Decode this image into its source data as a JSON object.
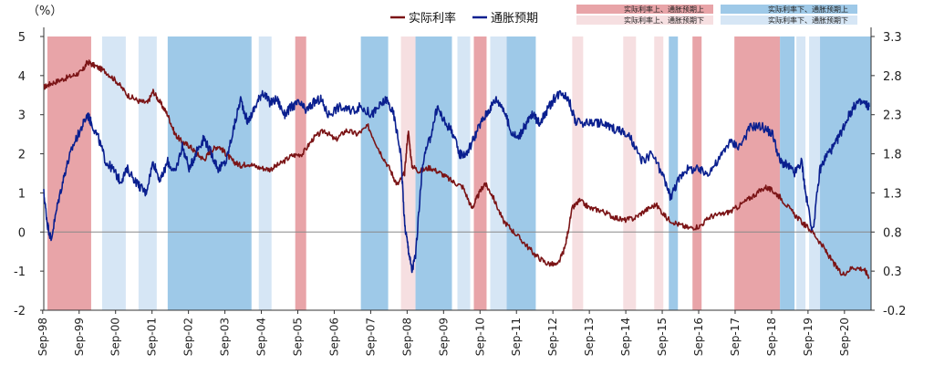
{
  "chart_data": {
    "type": "line",
    "unit_label": "（%）",
    "left_axis": {
      "ylim": [
        -2,
        5
      ],
      "ticks": [
        "5",
        "4",
        "3",
        "2",
        "1",
        "0",
        "-1",
        "-2"
      ]
    },
    "right_axis": {
      "ylim": [
        -0.2,
        3.3
      ],
      "ticks": [
        "3.3",
        "2.8",
        "2.3",
        "1.8",
        "1.3",
        "0.8",
        "0.3",
        "-0.2"
      ]
    },
    "x_ticks": [
      "Sep-98",
      "Sep-99",
      "Sep-00",
      "Sep-01",
      "Sep-02",
      "Sep-03",
      "Sep-04",
      "Sep-05",
      "Sep-06",
      "Sep-07",
      "Sep-08",
      "Sep-09",
      "Sep-10",
      "Sep-11",
      "Sep-12",
      "Sep-13",
      "Sep-14",
      "Sep-15",
      "Sep-16",
      "Sep-17",
      "Sep-18",
      "Sep-19",
      "Sep-20"
    ],
    "x_range": [
      1998.7,
      2021.4
    ],
    "series": [
      {
        "name": "实际利率",
        "axis": "left",
        "color": "#7b1416",
        "x": [
          1998.7,
          1998.9,
          1999.2,
          1999.5,
          1999.75,
          1999.9,
          2000.1,
          2000.4,
          2000.7,
          2001.0,
          2001.3,
          2001.55,
          2001.7,
          2001.9,
          2002.1,
          2002.3,
          2002.5,
          2002.7,
          2002.9,
          2003.1,
          2003.3,
          2003.5,
          2003.7,
          2003.9,
          2004.1,
          2004.3,
          2004.6,
          2004.9,
          2005.2,
          2005.5,
          2005.8,
          2006.1,
          2006.4,
          2006.7,
          2007.0,
          2007.3,
          2007.6,
          2007.9,
          2008.2,
          2008.4,
          2008.6,
          2008.7,
          2008.8,
          2009.0,
          2009.3,
          2009.6,
          2009.9,
          2010.2,
          2010.45,
          2010.6,
          2010.8,
          2011.0,
          2011.3,
          2011.6,
          2011.9,
          2012.2,
          2012.5,
          2012.8,
          2013.0,
          2013.2,
          2013.4,
          2013.7,
          2014.0,
          2014.3,
          2014.6,
          2014.9,
          2015.2,
          2015.5,
          2015.8,
          2016.1,
          2016.4,
          2016.7,
          2017.0,
          2017.3,
          2017.6,
          2017.9,
          2018.2,
          2018.5,
          2018.7,
          2018.9,
          2019.2,
          2019.5,
          2019.8,
          2020.1,
          2020.3,
          2020.6,
          2020.9,
          2021.2,
          2021.35
        ],
        "values": [
          3.7,
          3.8,
          3.9,
          4.0,
          4.1,
          4.35,
          4.25,
          4.1,
          3.85,
          3.5,
          3.35,
          3.3,
          3.6,
          3.3,
          3.0,
          2.5,
          2.3,
          2.2,
          2.0,
          1.85,
          2.1,
          2.2,
          2.0,
          1.8,
          1.7,
          1.75,
          1.65,
          1.6,
          1.75,
          1.95,
          2.0,
          2.4,
          2.6,
          2.35,
          2.6,
          2.5,
          2.7,
          2.1,
          1.6,
          1.2,
          1.5,
          2.6,
          1.7,
          1.55,
          1.65,
          1.5,
          1.3,
          1.15,
          0.6,
          0.9,
          1.25,
          0.95,
          0.3,
          0.0,
          -0.3,
          -0.6,
          -0.8,
          -0.85,
          -0.4,
          0.6,
          0.8,
          0.6,
          0.55,
          0.4,
          0.3,
          0.35,
          0.55,
          0.7,
          0.35,
          0.2,
          0.1,
          0.15,
          0.4,
          0.45,
          0.55,
          0.75,
          0.95,
          1.15,
          1.05,
          0.9,
          0.55,
          0.25,
          0.0,
          -0.4,
          -0.7,
          -1.1,
          -0.9,
          -0.95,
          -1.15
        ]
      },
      {
        "name": "通胀预期",
        "axis": "right",
        "color": "#0a1f8f",
        "x": [
          1998.7,
          1998.8,
          1998.9,
          1999.1,
          1999.3,
          1999.5,
          1999.7,
          1999.9,
          2000.0,
          2000.2,
          2000.4,
          2000.6,
          2000.8,
          2001.0,
          2001.3,
          2001.5,
          2001.7,
          2001.9,
          2002.1,
          2002.3,
          2002.5,
          2002.7,
          2002.9,
          2003.1,
          2003.3,
          2003.5,
          2003.7,
          2003.9,
          2004.1,
          2004.3,
          2004.5,
          2004.7,
          2004.9,
          2005.1,
          2005.3,
          2005.5,
          2005.7,
          2005.9,
          2006.1,
          2006.3,
          2006.5,
          2006.8,
          2007.1,
          2007.4,
          2007.7,
          2007.9,
          2008.1,
          2008.3,
          2008.5,
          2008.6,
          2008.7,
          2008.8,
          2008.9,
          2009.1,
          2009.3,
          2009.5,
          2009.7,
          2009.9,
          2010.1,
          2010.3,
          2010.5,
          2010.7,
          2010.9,
          2011.1,
          2011.3,
          2011.5,
          2011.7,
          2011.9,
          2012.1,
          2012.3,
          2012.5,
          2012.7,
          2012.9,
          2013.1,
          2013.3,
          2013.6,
          2013.9,
          2014.2,
          2014.5,
          2014.8,
          2015.1,
          2015.4,
          2015.7,
          2015.9,
          2016.1,
          2016.3,
          2016.6,
          2016.9,
          2017.2,
          2017.5,
          2017.8,
          2018.1,
          2018.4,
          2018.7,
          2018.9,
          2019.1,
          2019.3,
          2019.5,
          2019.6,
          2019.8,
          2020.0,
          2020.2,
          2020.4,
          2020.6,
          2020.8,
          2021.0,
          2021.2,
          2021.35
        ],
        "values": [
          1.3,
          0.9,
          0.7,
          1.2,
          1.6,
          1.9,
          2.1,
          2.3,
          2.2,
          2.0,
          1.7,
          1.6,
          1.45,
          1.6,
          1.4,
          1.3,
          1.7,
          1.45,
          1.7,
          1.55,
          1.9,
          1.6,
          1.85,
          2.0,
          1.8,
          1.6,
          1.7,
          2.1,
          2.5,
          2.2,
          2.4,
          2.6,
          2.45,
          2.5,
          2.3,
          2.4,
          2.45,
          2.35,
          2.45,
          2.5,
          2.3,
          2.4,
          2.35,
          2.4,
          2.3,
          2.4,
          2.5,
          2.3,
          1.8,
          0.9,
          0.6,
          0.3,
          0.5,
          1.7,
          2.0,
          2.4,
          2.2,
          2.1,
          1.8,
          1.8,
          2.0,
          2.2,
          2.35,
          2.5,
          2.4,
          2.1,
          2.0,
          2.15,
          2.3,
          2.2,
          2.35,
          2.5,
          2.6,
          2.5,
          2.2,
          2.2,
          2.2,
          2.15,
          2.1,
          2.0,
          1.7,
          1.8,
          1.5,
          1.25,
          1.45,
          1.6,
          1.6,
          1.55,
          1.7,
          1.95,
          1.9,
          2.15,
          2.15,
          2.05,
          1.7,
          1.65,
          1.55,
          1.7,
          1.3,
          0.8,
          1.6,
          1.8,
          1.9,
          2.1,
          2.3,
          2.45,
          2.45,
          2.4
        ]
      }
    ],
    "regimes": [
      {
        "label": "实际利率上、通胀预期上",
        "color": "#e8a4a8",
        "spans": [
          [
            1998.8,
            2000.0
          ],
          [
            2005.6,
            2005.9
          ],
          [
            2010.5,
            2010.85
          ],
          [
            2016.5,
            2016.75
          ],
          [
            2017.65,
            2018.9
          ]
        ]
      },
      {
        "label": "实际利率上、通胀预期下",
        "color": "#f6dfe1",
        "spans": [
          [
            2008.5,
            2008.9
          ],
          [
            2013.2,
            2013.5
          ],
          [
            2014.6,
            2014.95
          ],
          [
            2015.45,
            2015.7
          ]
        ]
      },
      {
        "label": "实际利率下、通胀预期上",
        "color": "#9ec9e8",
        "spans": [
          [
            2002.1,
            2004.4
          ],
          [
            2007.4,
            2008.15
          ],
          [
            2008.9,
            2009.9
          ],
          [
            2011.4,
            2012.2
          ],
          [
            2015.85,
            2016.1
          ],
          [
            2018.9,
            2019.3
          ],
          [
            2019.9,
            2021.7
          ]
        ]
      },
      {
        "label": "实际利率下、通胀预期下",
        "color": "#d6e6f5",
        "spans": [
          [
            2000.3,
            2000.95
          ],
          [
            2001.3,
            2001.8
          ],
          [
            2004.6,
            2004.95
          ],
          [
            2010.05,
            2010.4
          ],
          [
            2010.95,
            2011.4
          ],
          [
            2019.35,
            2019.6
          ],
          [
            2019.7,
            2020.0
          ]
        ]
      }
    ]
  }
}
